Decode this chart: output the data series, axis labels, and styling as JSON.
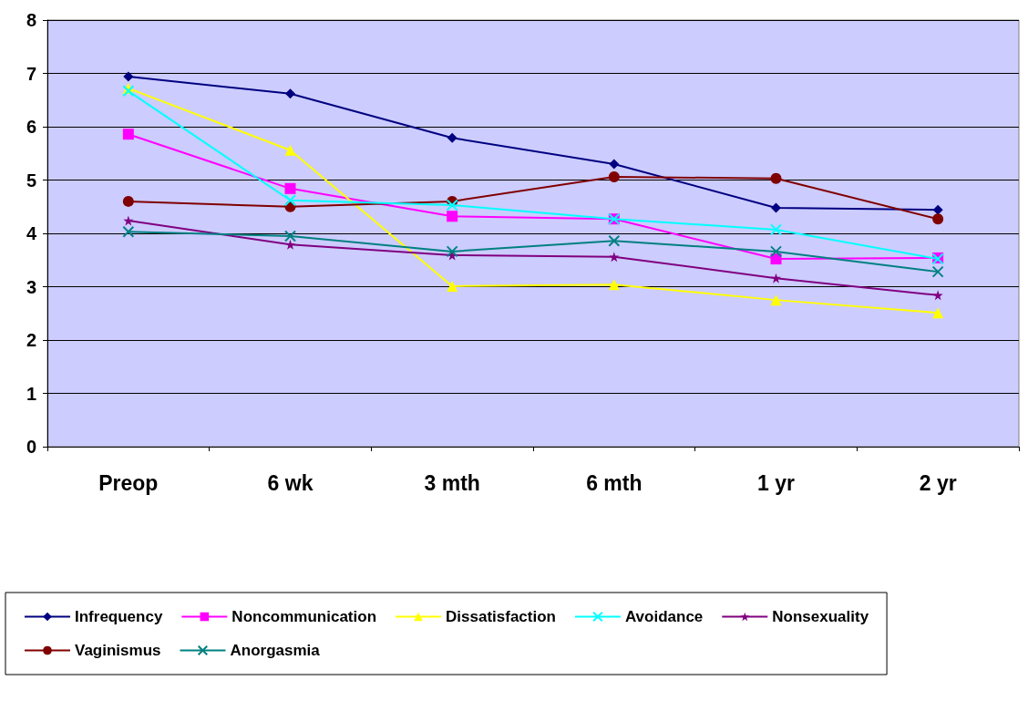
{
  "chart_data": {
    "type": "line",
    "categories": [
      "Preop",
      "6 wk",
      "3 mth",
      "6 mth",
      "1 yr",
      "2 yr"
    ],
    "series": [
      {
        "name": "Infrequency",
        "color": "#000080",
        "marker": "diamond",
        "values": [
          6.94,
          6.62,
          5.79,
          5.3,
          4.48,
          4.44
        ]
      },
      {
        "name": "Noncommunication",
        "color": "#ff00ff",
        "marker": "square",
        "values": [
          5.86,
          4.84,
          4.32,
          4.27,
          3.52,
          3.54
        ]
      },
      {
        "name": "Dissatisfaction",
        "color": "#ffff00",
        "marker": "triangle",
        "values": [
          6.72,
          5.56,
          3.01,
          3.04,
          2.75,
          2.51
        ]
      },
      {
        "name": "Avoidance",
        "color": "#00ffff",
        "marker": "cross",
        "values": [
          6.67,
          4.62,
          4.53,
          4.27,
          4.07,
          3.52
        ]
      },
      {
        "name": "Nonsexuality",
        "color": "#800080",
        "marker": "star",
        "values": [
          4.24,
          3.79,
          3.59,
          3.56,
          3.16,
          2.84
        ]
      },
      {
        "name": "Vaginismus",
        "color": "#800000",
        "marker": "circle",
        "values": [
          4.6,
          4.5,
          4.6,
          5.06,
          5.03,
          4.27
        ]
      },
      {
        "name": "Anorgasmia",
        "color": "#008080",
        "marker": "cross",
        "values": [
          4.03,
          3.95,
          3.66,
          3.86,
          3.66,
          3.28
        ]
      }
    ],
    "ylim": [
      0,
      8
    ],
    "yticks": [
      0,
      1,
      2,
      3,
      4,
      5,
      6,
      7,
      8
    ],
    "grid": "y",
    "legend": "bottom"
  }
}
